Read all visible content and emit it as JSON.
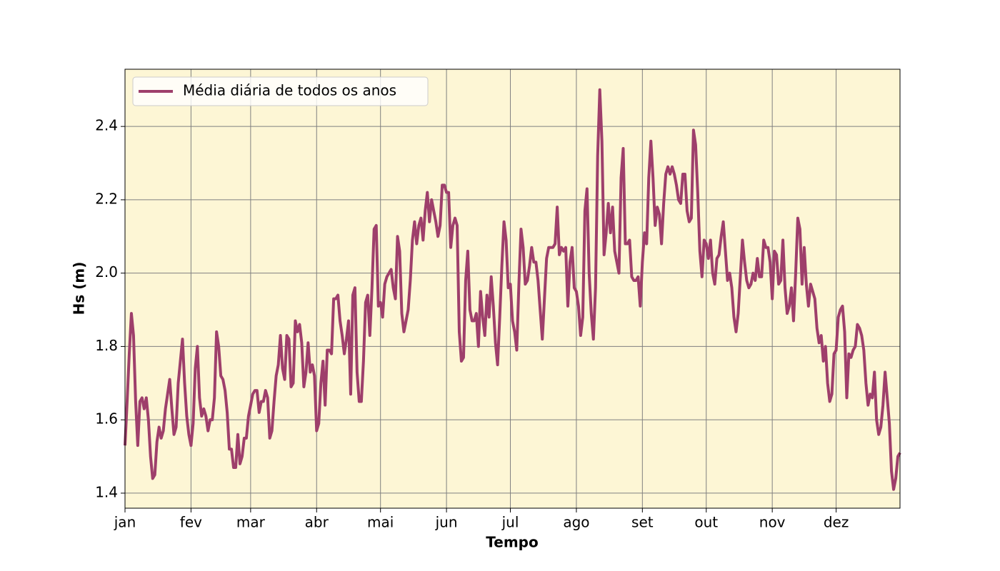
{
  "chart_data": {
    "type": "line",
    "xlabel": "Tempo",
    "ylabel": "Hs (m)",
    "x": [
      0,
      1,
      2,
      3,
      4,
      5,
      6,
      7,
      8,
      9,
      10,
      11,
      12,
      13,
      14,
      15,
      16,
      17,
      18,
      19,
      20,
      21,
      22,
      23,
      24,
      25,
      26,
      27,
      28,
      29,
      30,
      31,
      32,
      33,
      34,
      35,
      36,
      37,
      38,
      39,
      40,
      41,
      42,
      43,
      44,
      45,
      46,
      47,
      48,
      49,
      50,
      51,
      52,
      53,
      54,
      55,
      56,
      57,
      58,
      59,
      60,
      61,
      62,
      63,
      64,
      65,
      66,
      67,
      68,
      69,
      70,
      71,
      72,
      73,
      74,
      75,
      76,
      77,
      78,
      79,
      80,
      81,
      82,
      83,
      84,
      85,
      86,
      87,
      88,
      89,
      90,
      91,
      92,
      93,
      94,
      95,
      96,
      97,
      98,
      99,
      100,
      101,
      102,
      103,
      104,
      105,
      106,
      107,
      108,
      109,
      110,
      111,
      112,
      113,
      114,
      115,
      116,
      117,
      118,
      119,
      120,
      121,
      122,
      123,
      124,
      125,
      126,
      127,
      128,
      129,
      130,
      131,
      132,
      133,
      134,
      135,
      136,
      137,
      138,
      139,
      140,
      141,
      142,
      143,
      144,
      145,
      146,
      147,
      148,
      149,
      150,
      151,
      152,
      153,
      154,
      155,
      156,
      157,
      158,
      159,
      160,
      161,
      162,
      163,
      164,
      165,
      166,
      167,
      168,
      169,
      170,
      171,
      172,
      173,
      174,
      175,
      176,
      177,
      178,
      179,
      180,
      181,
      182,
      183,
      184,
      185,
      186,
      187,
      188,
      189,
      190,
      191,
      192,
      193,
      194,
      195,
      196,
      197,
      198,
      199,
      200,
      201,
      202,
      203,
      204,
      205,
      206,
      207,
      208,
      209,
      210,
      211,
      212,
      213,
      214,
      215,
      216,
      217,
      218,
      219,
      220,
      221,
      222,
      223,
      224,
      225,
      226,
      227,
      228,
      229,
      230,
      231,
      232,
      233,
      234,
      235,
      236,
      237,
      238,
      239,
      240,
      241,
      242,
      243,
      244,
      245,
      246,
      247,
      248,
      249,
      250,
      251,
      252,
      253,
      254,
      255,
      256,
      257,
      258,
      259,
      260,
      261,
      262,
      263,
      264,
      265,
      266,
      267,
      268,
      269,
      270,
      271,
      272,
      273,
      274,
      275,
      276,
      277,
      278,
      279,
      280,
      281,
      282,
      283,
      284,
      285,
      286,
      287,
      288,
      289,
      290,
      291,
      292,
      293,
      294,
      295,
      296,
      297,
      298,
      299,
      300,
      301,
      302,
      303,
      304,
      305,
      306,
      307,
      308,
      309,
      310,
      311,
      312,
      313,
      314,
      315,
      316,
      317,
      318,
      319,
      320,
      321,
      322,
      323,
      324,
      325,
      326,
      327,
      328,
      329,
      330,
      331,
      332,
      333,
      334,
      335,
      336,
      337,
      338,
      339,
      340,
      341,
      342,
      343,
      344,
      345,
      346,
      347,
      348,
      349,
      350,
      351,
      352,
      353,
      354,
      355,
      356,
      357,
      358,
      359,
      360,
      361,
      362,
      363,
      364
    ],
    "series": [
      {
        "name": "Média diária de todos os anos",
        "color": "#9e3f6b",
        "values": [
          1.53,
          1.65,
          1.78,
          1.89,
          1.83,
          1.65,
          1.53,
          1.65,
          1.66,
          1.63,
          1.66,
          1.6,
          1.5,
          1.44,
          1.45,
          1.54,
          1.58,
          1.55,
          1.57,
          1.63,
          1.67,
          1.71,
          1.63,
          1.56,
          1.58,
          1.7,
          1.76,
          1.82,
          1.7,
          1.61,
          1.56,
          1.53,
          1.59,
          1.74,
          1.8,
          1.66,
          1.61,
          1.63,
          1.61,
          1.57,
          1.6,
          1.6,
          1.66,
          1.84,
          1.8,
          1.72,
          1.71,
          1.68,
          1.62,
          1.52,
          1.52,
          1.47,
          1.47,
          1.56,
          1.48,
          1.5,
          1.55,
          1.55,
          1.61,
          1.64,
          1.67,
          1.68,
          1.68,
          1.62,
          1.65,
          1.65,
          1.68,
          1.66,
          1.55,
          1.57,
          1.65,
          1.72,
          1.75,
          1.83,
          1.74,
          1.71,
          1.83,
          1.82,
          1.69,
          1.7,
          1.87,
          1.84,
          1.86,
          1.81,
          1.69,
          1.73,
          1.81,
          1.73,
          1.75,
          1.72,
          1.57,
          1.59,
          1.7,
          1.76,
          1.64,
          1.79,
          1.79,
          1.78,
          1.93,
          1.93,
          1.94,
          1.87,
          1.83,
          1.78,
          1.82,
          1.87,
          1.67,
          1.94,
          1.96,
          1.73,
          1.65,
          1.65,
          1.76,
          1.92,
          1.94,
          1.83,
          1.96,
          2.12,
          2.13,
          1.91,
          1.92,
          1.88,
          1.97,
          1.99,
          2.0,
          2.01,
          1.96,
          1.93,
          2.1,
          2.06,
          1.89,
          1.84,
          1.87,
          1.9,
          1.98,
          2.09,
          2.14,
          2.08,
          2.13,
          2.15,
          2.09,
          2.17,
          2.22,
          2.14,
          2.2,
          2.17,
          2.14,
          2.1,
          2.13,
          2.24,
          2.24,
          2.22,
          2.22,
          2.07,
          2.13,
          2.15,
          2.13,
          1.84,
          1.76,
          1.77,
          1.98,
          2.06,
          1.9,
          1.87,
          1.87,
          1.89,
          1.8,
          1.95,
          1.88,
          1.83,
          1.94,
          1.88,
          1.99,
          1.91,
          1.81,
          1.75,
          1.88,
          2.02,
          2.14,
          2.09,
          1.96,
          1.97,
          1.87,
          1.84,
          1.79,
          1.97,
          2.12,
          2.07,
          1.97,
          1.98,
          2.02,
          2.07,
          2.03,
          2.03,
          1.98,
          1.9,
          1.82,
          1.93,
          2.04,
          2.07,
          2.07,
          2.07,
          2.08,
          2.18,
          2.05,
          2.07,
          2.06,
          2.07,
          1.91,
          2.03,
          2.07,
          1.96,
          1.95,
          1.91,
          1.83,
          1.88,
          2.17,
          2.23,
          2.0,
          1.89,
          1.82,
          1.96,
          2.32,
          2.5,
          2.36,
          2.05,
          2.11,
          2.19,
          2.11,
          2.18,
          2.06,
          2.03,
          2.0,
          2.26,
          2.34,
          2.08,
          2.08,
          2.09,
          1.99,
          1.98,
          1.98,
          1.99,
          1.91,
          2.03,
          2.11,
          2.08,
          2.26,
          2.36,
          2.26,
          2.13,
          2.18,
          2.16,
          2.08,
          2.19,
          2.27,
          2.29,
          2.27,
          2.29,
          2.27,
          2.24,
          2.2,
          2.19,
          2.27,
          2.27,
          2.17,
          2.14,
          2.15,
          2.39,
          2.35,
          2.22,
          2.06,
          1.99,
          2.09,
          2.08,
          2.04,
          2.09,
          2.0,
          1.97,
          2.04,
          2.05,
          2.1,
          2.14,
          2.06,
          1.98,
          2.0,
          1.96,
          1.88,
          1.84,
          1.89,
          1.99,
          2.09,
          2.03,
          1.98,
          1.96,
          1.97,
          2.0,
          1.98,
          2.04,
          1.99,
          1.99,
          2.09,
          2.07,
          2.07,
          2.03,
          1.93,
          2.06,
          2.05,
          1.97,
          1.98,
          2.09,
          1.96,
          1.89,
          1.91,
          1.96,
          1.87,
          2.0,
          2.15,
          2.12,
          1.97,
          2.07,
          1.97,
          1.91,
          1.97,
          1.95,
          1.93,
          1.85,
          1.81,
          1.83,
          1.76,
          1.8,
          1.7,
          1.65,
          1.67,
          1.78,
          1.79,
          1.88,
          1.9,
          1.91,
          1.84,
          1.66,
          1.78,
          1.77,
          1.79,
          1.8,
          1.86,
          1.85,
          1.83,
          1.79,
          1.7,
          1.64,
          1.67,
          1.66,
          1.73,
          1.6,
          1.56,
          1.58,
          1.64,
          1.73,
          1.66,
          1.59,
          1.46,
          1.41,
          1.44,
          1.5,
          1.51
        ]
      }
    ],
    "xlim": [
      0,
      364
    ],
    "ylim": [
      1.359,
      2.556
    ],
    "xticks": [
      {
        "value": 0,
        "label": "jan"
      },
      {
        "value": 31,
        "label": "fev"
      },
      {
        "value": 59,
        "label": "mar"
      },
      {
        "value": 90,
        "label": "abr"
      },
      {
        "value": 120,
        "label": "mai"
      },
      {
        "value": 151,
        "label": "jun"
      },
      {
        "value": 181,
        "label": "jul"
      },
      {
        "value": 212,
        "label": "ago"
      },
      {
        "value": 243,
        "label": "set"
      },
      {
        "value": 273,
        "label": "out"
      },
      {
        "value": 304,
        "label": "nov"
      },
      {
        "value": 334,
        "label": "dez"
      }
    ],
    "yticks": [
      1.4,
      1.6,
      1.8,
      {
        "value": 2,
        "label": "2.0"
      },
      2.2,
      2.4
    ],
    "grid": true,
    "legend": "upper left",
    "background": "#fdf6d5"
  }
}
